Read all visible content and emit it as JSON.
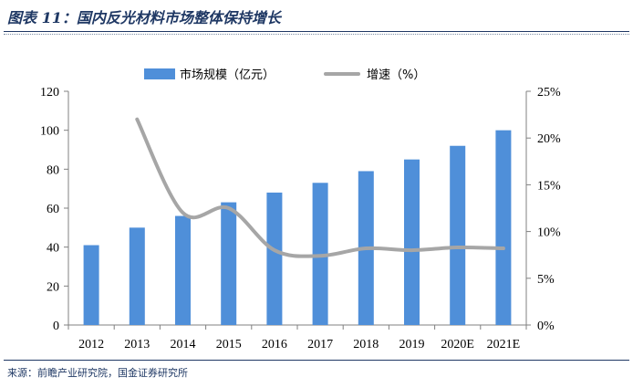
{
  "header": {
    "title": "图表 11：国内反光材料市场整体保持增长"
  },
  "footer": {
    "source": "来源：前瞻产业研究院，国金证券研究所"
  },
  "chart_data": {
    "type": "bar",
    "categories": [
      "2012",
      "2013",
      "2014",
      "2015",
      "2016",
      "2017",
      "2018",
      "2019",
      "2020E",
      "2021E"
    ],
    "series": [
      {
        "name": "市场规模（亿元）",
        "type": "bar",
        "axis": "left",
        "color": "#4f8fd9",
        "values": [
          41,
          50,
          56,
          63,
          68,
          73,
          79,
          85,
          92,
          100
        ]
      },
      {
        "name": "增速（%）",
        "type": "line",
        "axis": "right",
        "color": "#a6a6a6",
        "values": [
          null,
          22,
          12,
          12.5,
          8,
          7.4,
          8.2,
          8,
          8.3,
          8.2
        ]
      }
    ],
    "y_left": {
      "ylim": [
        0,
        120
      ],
      "ticks": [
        "0",
        "20",
        "40",
        "60",
        "80",
        "100",
        "120"
      ]
    },
    "y_right": {
      "ylim": [
        0,
        25
      ],
      "ticks": [
        "0%",
        "5%",
        "10%",
        "15%",
        "20%",
        "25%"
      ]
    },
    "legend_position": "top-center",
    "grid": false
  }
}
